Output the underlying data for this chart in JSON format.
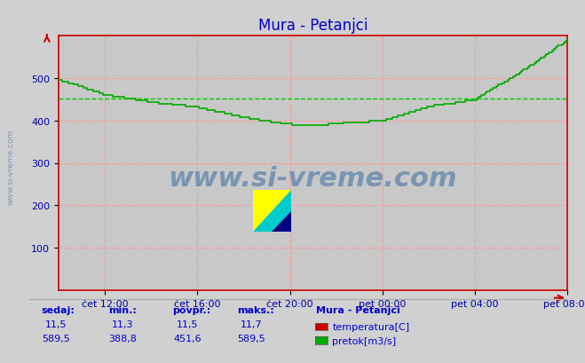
{
  "title": "Mura - Petanjci",
  "bg_color": "#d0d0d0",
  "plot_bg_color": "#c8c8c8",
  "grid_color": "#ff9999",
  "axis_color": "#cc0000",
  "title_color": "#0000cc",
  "tick_color": "#0000aa",
  "flow_color": "#00aa00",
  "temp_color": "#cc0000",
  "avg_flow_color": "#00cc00",
  "ylim": [
    0,
    600
  ],
  "yticks": [
    100,
    200,
    300,
    400,
    500
  ],
  "xlabels": [
    "čet 12:00",
    "čet 16:00",
    "čet 20:00",
    "pet 00:00",
    "pet 04:00",
    "pet 08:00"
  ],
  "avg_flow": 451.6,
  "footer_label_color": "#0000cc",
  "watermark_color": "#7090b0",
  "legend_title": "Mura - Petanjci",
  "legend_entries": [
    "temperatura[C]",
    "pretok[m3/s]"
  ],
  "legend_colors": [
    "#cc0000",
    "#00aa00"
  ],
  "stats_headers": [
    "sedaj:",
    "min.:",
    "povpr.:",
    "maks.:"
  ],
  "stats_temp": [
    "11,5",
    "11,3",
    "11,5",
    "11,7"
  ],
  "stats_flow": [
    "589,5",
    "388,8",
    "451,6",
    "589,5"
  ]
}
